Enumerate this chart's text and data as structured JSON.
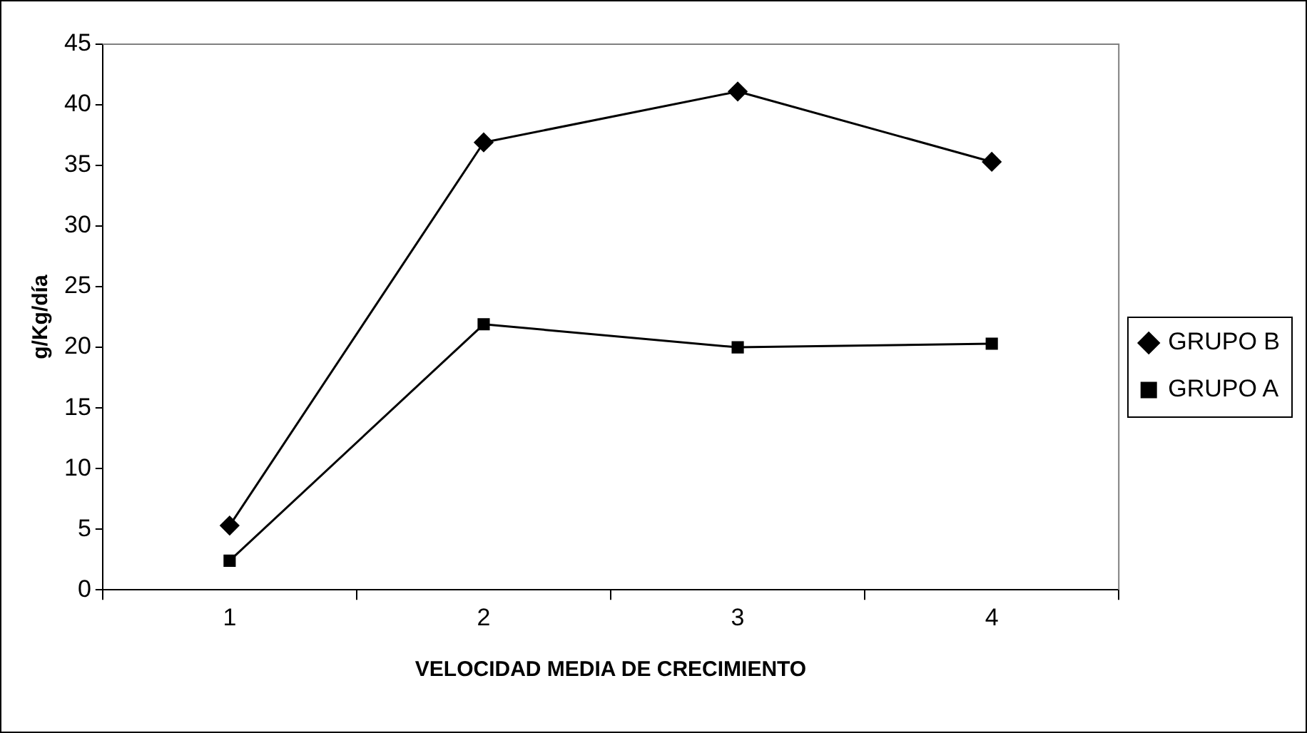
{
  "chart_data": {
    "type": "line",
    "xlabel": "VELOCIDAD MEDIA DE CRECIMIENTO",
    "ylabel": "g/Kg/día",
    "categories": [
      "1",
      "2",
      "3",
      "4"
    ],
    "series": [
      {
        "name": "GRUPO B",
        "color": "#000000",
        "marker": "diamond",
        "values": [
          5.3,
          36.9,
          41.1,
          35.3
        ]
      },
      {
        "name": "GRUPO A",
        "color": "#000000",
        "marker": "square",
        "values": [
          2.4,
          21.9,
          20.0,
          20.3
        ]
      }
    ],
    "ylim": [
      0,
      45
    ],
    "yticks": [
      0,
      5,
      10,
      15,
      20,
      25,
      30,
      35,
      40,
      45
    ],
    "grid": false,
    "legend": "right",
    "line_style": "solid"
  }
}
